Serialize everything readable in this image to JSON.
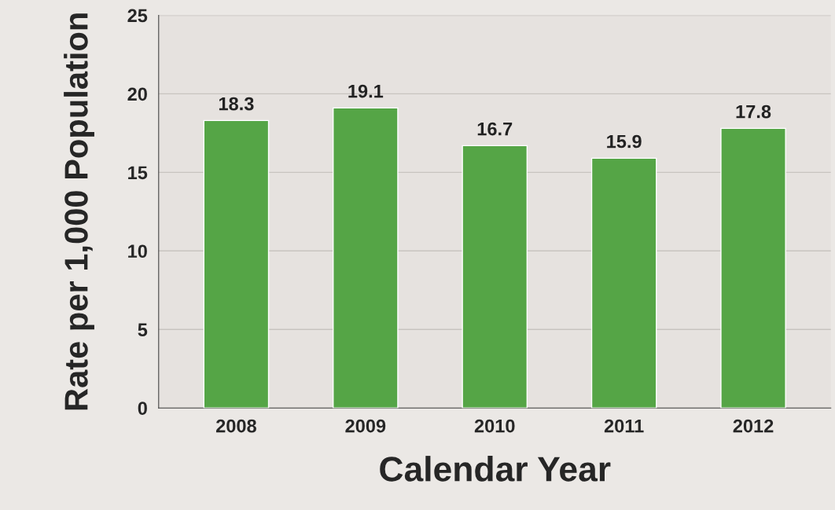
{
  "chart_data": {
    "type": "bar",
    "xlabel": "Calendar Year",
    "ylabel": "Rate per 1,000 Population",
    "categories": [
      "2008",
      "2009",
      "2010",
      "2011",
      "2012"
    ],
    "values": [
      18.3,
      19.1,
      16.7,
      15.9,
      17.8
    ],
    "color": "#55a546",
    "ylim": [
      0,
      25
    ],
    "yticks": [
      0,
      5,
      10,
      15,
      20,
      25
    ],
    "grid": "y",
    "data_labels": true,
    "legend": false
  }
}
